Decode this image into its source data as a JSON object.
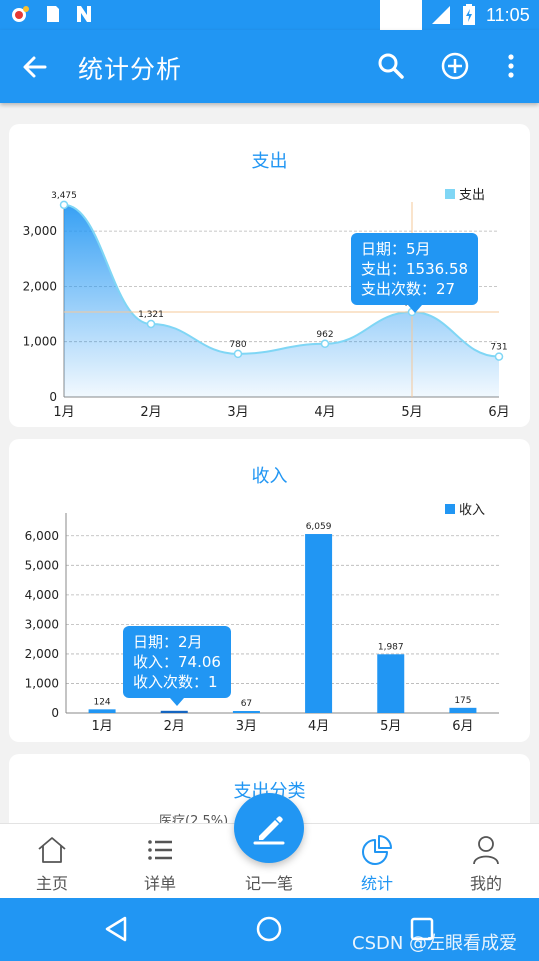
{
  "status_bar": {
    "time": "11:05",
    "network": "LTE",
    "icons": [
      "weibo-notification-icon",
      "sd-card-icon",
      "n-app-icon",
      "signal-icon",
      "battery-charging-icon"
    ]
  },
  "app_bar": {
    "title": "统计分析",
    "icons": [
      "back-arrow-icon",
      "search-icon",
      "add-circle-icon",
      "more-vert-icon"
    ]
  },
  "colors": {
    "primary": "#2196f3",
    "area_line": "#7fd6f5",
    "crosshair": "#f5c89a",
    "background": "#f2f2f2"
  },
  "expense_chart": {
    "title": "支出",
    "legend": "支出",
    "tooltip": {
      "date_line": "日期：5月",
      "amount_line": "支出：1536.58",
      "count_line": "支出次数：27"
    },
    "chart_data": {
      "type": "area",
      "title": "支出",
      "categories": [
        "1月",
        "2月",
        "3月",
        "4月",
        "5月",
        "6月"
      ],
      "series": [
        {
          "name": "支出",
          "values": [
            3475,
            1321,
            780,
            962,
            1536.58,
            731
          ]
        }
      ],
      "data_labels": [
        "3,475",
        "1,321",
        "780",
        "962",
        "1,537",
        "731"
      ],
      "y_ticks": [
        "0",
        "1,000",
        "2,000",
        "3,000"
      ],
      "ylim": [
        0,
        3400
      ],
      "grid": true,
      "legend_position": "top-right",
      "highlight_category": "5月"
    }
  },
  "income_chart": {
    "title": "收入",
    "legend": "收入",
    "tooltip": {
      "date_line": "日期：2月",
      "amount_line": "收入：74.06",
      "count_line": "收入次数：1"
    },
    "chart_data": {
      "type": "bar",
      "title": "收入",
      "categories": [
        "1月",
        "2月",
        "3月",
        "4月",
        "5月",
        "6月"
      ],
      "series": [
        {
          "name": "收入",
          "values": [
            124,
            74.06,
            67,
            6059,
            1987,
            175
          ]
        }
      ],
      "data_labels": [
        "124",
        "",
        "67",
        "6,059",
        "1,987",
        "175"
      ],
      "y_ticks": [
        "0",
        "1,000",
        "2,000",
        "3,000",
        "4,000",
        "5,000",
        "6,000"
      ],
      "ylim": [
        0,
        6500
      ],
      "grid": true,
      "legend_position": "top-right",
      "highlight_category": "2月"
    }
  },
  "category_card": {
    "title": "支出分类",
    "partial_label": "医疗(2.5%)"
  },
  "bottom_nav": {
    "items": [
      {
        "label": "主页",
        "icon": "home-icon"
      },
      {
        "label": "详单",
        "icon": "list-icon"
      },
      {
        "label": "记一笔",
        "icon": "edit-pen-icon"
      },
      {
        "label": "统计",
        "icon": "pie-chart-icon",
        "active": true
      },
      {
        "label": "我的",
        "icon": "person-icon"
      }
    ]
  },
  "system_nav": {
    "icons": [
      "back-triangle-icon",
      "home-circle-icon",
      "recents-square-icon"
    ]
  },
  "watermark": "CSDN @左眼看成爱"
}
